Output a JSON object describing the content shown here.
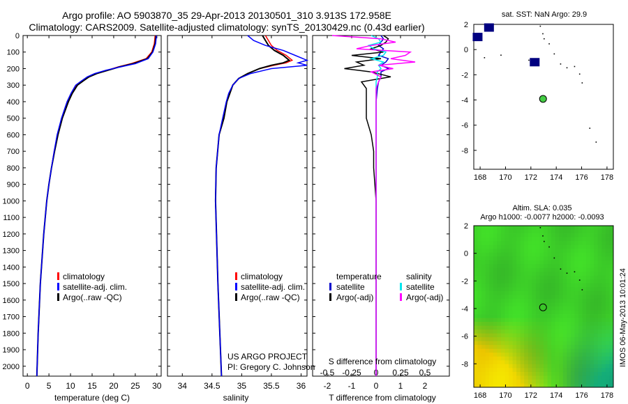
{
  "title_line1": "Argo profile: AO 5903870_35 29-Apr-2013 20130501_310 3.913S 172.958E",
  "title_line2": "Climatology: CARS2009. Satellite-adjusted climatology: synTS_20130429.nc (0.43d earlier)",
  "depth_ticks": [
    0,
    100,
    200,
    300,
    400,
    500,
    600,
    700,
    800,
    900,
    1000,
    1100,
    1200,
    1300,
    1400,
    1500,
    1600,
    1700,
    1800,
    1900,
    2000
  ],
  "colors": {
    "climatology": "#ff0000",
    "satellite": "#0000ff",
    "argo": "#000000",
    "cyan": "#00e5ee",
    "magenta": "#ff00ff",
    "map_marker": "#000080",
    "sst_dot": "#44cc44"
  },
  "chart_data": [
    {
      "id": "temperature",
      "type": "line",
      "xlabel": "temperature (deg C)",
      "ylabel": "",
      "xlim": [
        -1,
        31
      ],
      "ylim": [
        2060,
        0
      ],
      "xticks": [
        0,
        5,
        10,
        15,
        20,
        25,
        30
      ],
      "legend": [
        "climatology",
        "satellite-adj. clim.",
        "Argo(..raw -QC)"
      ],
      "depth": [
        0,
        50,
        100,
        140,
        170,
        190,
        210,
        230,
        250,
        275,
        300,
        350,
        400,
        500,
        600,
        700,
        800,
        900,
        1000,
        1200,
        1500,
        1800,
        2060
      ],
      "series": [
        {
          "name": "climatology",
          "values": [
            29.6,
            29.4,
            28.8,
            27.5,
            24,
            21,
            18.5,
            16,
            14.3,
            12.8,
            11.5,
            10.3,
            9.4,
            8.0,
            7.0,
            6.2,
            5.6,
            5.0,
            4.5,
            3.8,
            3.0,
            2.5,
            2.2
          ]
        },
        {
          "name": "satellite-adj. clim.",
          "values": [
            29.8,
            29.6,
            29.0,
            27.8,
            24.5,
            21.3,
            18.7,
            16.1,
            14.3,
            12.9,
            11.6,
            10.4,
            9.5,
            8.1,
            7.1,
            6.3,
            5.6,
            5.0,
            4.5,
            3.8,
            3.0,
            2.5,
            2.2
          ]
        },
        {
          "name": "Argo(..raw -QC)",
          "values": [
            29.9,
            29.7,
            29.1,
            28.0,
            25.0,
            21.5,
            18.2,
            15.6,
            13.9,
            12.5,
            11.2,
            10.1,
            9.2,
            7.9,
            6.9,
            6.2,
            5.6,
            5.0,
            4.5,
            3.8,
            3.0,
            2.5,
            2.2
          ]
        }
      ]
    },
    {
      "id": "salinity",
      "type": "line",
      "xlabel": "salinity",
      "ylabel": "",
      "xlim": [
        33.75,
        36.1
      ],
      "ylim": [
        2060,
        0
      ],
      "xticks": [
        34,
        34.5,
        35,
        35.5,
        36
      ],
      "legend": [
        "climatology",
        "satellite-adj. clim.",
        "Argo(..raw -QC)"
      ],
      "depth": [
        0,
        30,
        60,
        90,
        120,
        150,
        165,
        180,
        200,
        230,
        260,
        300,
        350,
        400,
        500,
        600,
        800,
        1000,
        1500,
        2060
      ],
      "series": [
        {
          "name": "climatology",
          "values": [
            35.4,
            35.45,
            35.5,
            35.6,
            35.75,
            35.85,
            35.75,
            35.55,
            35.3,
            35.1,
            34.95,
            34.85,
            34.8,
            34.75,
            34.7,
            34.62,
            34.57,
            34.56,
            34.6,
            34.66
          ]
        },
        {
          "name": "satellite-adj. clim.",
          "values": [
            35.35,
            35.4,
            35.45,
            35.55,
            35.7,
            35.8,
            35.7,
            35.5,
            35.3,
            35.1,
            34.95,
            34.85,
            34.8,
            34.75,
            34.7,
            34.62,
            34.57,
            34.56,
            34.6,
            34.66
          ]
        },
        {
          "name": "Argo(..raw -QC)",
          "values": [
            35.1,
            35.2,
            35.4,
            35.7,
            35.9,
            36.1,
            35.95,
            36.1,
            35.5,
            35.15,
            34.95,
            34.85,
            34.78,
            34.74,
            34.68,
            34.62,
            34.57,
            34.56,
            34.6,
            34.66
          ]
        }
      ]
    },
    {
      "id": "difference",
      "type": "line",
      "xlabel": "T difference from climatology",
      "xlabel2": "S difference from climatology",
      "xlim": [
        -2.6,
        3.0
      ],
      "ylim": [
        2060,
        0
      ],
      "xticks": [
        -2,
        -1,
        0,
        1,
        2
      ],
      "xticks_top": [
        "-0.5",
        "-0.25",
        "0",
        "0.25",
        "0.5"
      ],
      "legend_headers": [
        "temperature",
        "salinity"
      ],
      "legend": [
        "satellite",
        "Argo(-adj)",
        "satellite",
        "Argo(-adj)"
      ],
      "depth": [
        0,
        20,
        40,
        60,
        80,
        100,
        120,
        140,
        160,
        180,
        200,
        220,
        250,
        280,
        320,
        400,
        500,
        600,
        700,
        800,
        1000,
        1500,
        2060
      ],
      "series": [
        {
          "name": "T satellite",
          "values": [
            0.2,
            0.3,
            0.2,
            0.1,
            0.3,
            0.2,
            0.1,
            0.5,
            0.4,
            0.2,
            0.5,
            0.2,
            0.2,
            0.1,
            0.05,
            0,
            0,
            0,
            0,
            0,
            0,
            0,
            0
          ]
        },
        {
          "name": "T Argo(-adj)",
          "values": [
            0.3,
            0.5,
            0.4,
            0.2,
            -0.2,
            0.3,
            -1.0,
            0.2,
            -0.8,
            -0.5,
            -1.3,
            -0.2,
            0.6,
            -0.6,
            -0.4,
            -0.4,
            -0.4,
            -0.2,
            -0.1,
            -0.1,
            0,
            0,
            0
          ]
        },
        {
          "name": "S satellite",
          "values": [
            -0.2,
            0.1,
            0.2,
            -0.3,
            -0.1,
            0.4,
            0.3,
            -0.2,
            0.3,
            0.1,
            0.2,
            0.05,
            0.05,
            0,
            0,
            0,
            0,
            0,
            0,
            0,
            0,
            0,
            0
          ]
        },
        {
          "name": "S Argo(-adj)",
          "values": [
            -1.8,
            0.2,
            0.8,
            -0.2,
            -0.8,
            1.4,
            1.2,
            0.6,
            1.6,
            0.1,
            0.7,
            -0.2,
            0.2,
            0.1,
            0,
            0,
            0,
            0,
            0,
            0,
            0,
            0,
            0
          ]
        }
      ]
    },
    {
      "id": "sst_map",
      "type": "scatter",
      "title": "sat. SST: NaN Argo: 29.9",
      "xlim": [
        167.5,
        178.5
      ],
      "ylim": [
        -9.5,
        2
      ],
      "xticks": [
        168,
        170,
        172,
        174,
        176,
        178
      ],
      "yticks": [
        2,
        0,
        -2,
        -4,
        -6,
        -8
      ],
      "argo_position": {
        "lon": 172.958,
        "lat": -3.913
      },
      "land_cells": [
        {
          "lon": 168.7,
          "lat": 1.75
        },
        {
          "lon": 167.8,
          "lat": 1.0
        },
        {
          "lon": 172.3,
          "lat": -1.0
        }
      ]
    },
    {
      "id": "sla_map",
      "type": "heatmap",
      "title_line1": "Altim. SLA: 0.035",
      "title_line2": "Argo h1000: -0.0077 h2000: -0.0093",
      "xlim": [
        167.5,
        178.5
      ],
      "ylim": [
        -9.7,
        2
      ],
      "xticks": [
        168,
        170,
        172,
        174,
        176,
        178
      ],
      "yticks": [
        2,
        0,
        -2,
        -4,
        -6,
        -8
      ],
      "argo_position": {
        "lon": 172.958,
        "lat": -3.913
      }
    }
  ],
  "project_line1": "US ARGO PROJECT",
  "project_line2": "PI: Gregory C. Johnson",
  "watermark": "IMOS 06-May-2013 10:01:24"
}
